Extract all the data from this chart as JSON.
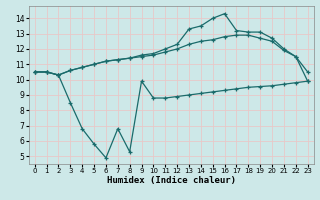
{
  "background_color": "#cde8e8",
  "grid_color": "#b0d0d0",
  "line_color": "#1a6b6b",
  "xlabel": "Humidex (Indice chaleur)",
  "xlim": [
    -0.5,
    23.5
  ],
  "ylim": [
    4.5,
    14.8
  ],
  "yticks": [
    5,
    6,
    7,
    8,
    9,
    10,
    11,
    12,
    13,
    14
  ],
  "xticks": [
    0,
    1,
    2,
    3,
    4,
    5,
    6,
    7,
    8,
    9,
    10,
    11,
    12,
    13,
    14,
    15,
    16,
    17,
    18,
    19,
    20,
    21,
    22,
    23
  ],
  "line1_x": [
    0,
    1,
    2,
    3,
    4,
    5,
    6,
    7,
    8,
    9,
    10,
    11,
    12,
    13,
    14,
    15,
    16,
    17,
    18,
    19,
    20,
    21,
    22,
    23
  ],
  "line1_y": [
    10.5,
    10.5,
    10.3,
    10.6,
    10.8,
    11.0,
    11.2,
    11.3,
    11.4,
    11.5,
    11.6,
    11.8,
    12.0,
    12.3,
    12.5,
    12.6,
    12.8,
    12.9,
    12.9,
    12.7,
    12.5,
    11.9,
    11.5,
    9.9
  ],
  "line2_x": [
    0,
    1,
    2,
    3,
    4,
    5,
    6,
    7,
    8,
    9,
    10,
    11,
    12,
    13,
    14,
    15,
    16,
    17,
    18,
    19,
    20,
    21,
    22,
    23
  ],
  "line2_y": [
    10.5,
    10.5,
    10.3,
    10.6,
    10.8,
    11.0,
    11.2,
    11.3,
    11.4,
    11.6,
    11.7,
    12.0,
    12.3,
    13.3,
    13.5,
    14.0,
    14.3,
    13.2,
    13.1,
    13.1,
    12.7,
    12.0,
    11.5,
    10.5
  ],
  "line3_x": [
    0,
    1,
    2,
    3,
    4,
    5,
    6,
    7,
    8,
    9,
    10,
    11,
    12,
    13,
    14,
    15,
    16,
    17,
    18,
    19,
    20,
    21,
    22,
    23
  ],
  "line3_y": [
    10.5,
    10.5,
    10.3,
    8.5,
    6.8,
    5.8,
    4.9,
    6.8,
    5.3,
    9.9,
    8.8,
    8.8,
    8.9,
    9.0,
    9.1,
    9.2,
    9.3,
    9.4,
    9.5,
    9.55,
    9.6,
    9.7,
    9.8,
    9.9
  ]
}
